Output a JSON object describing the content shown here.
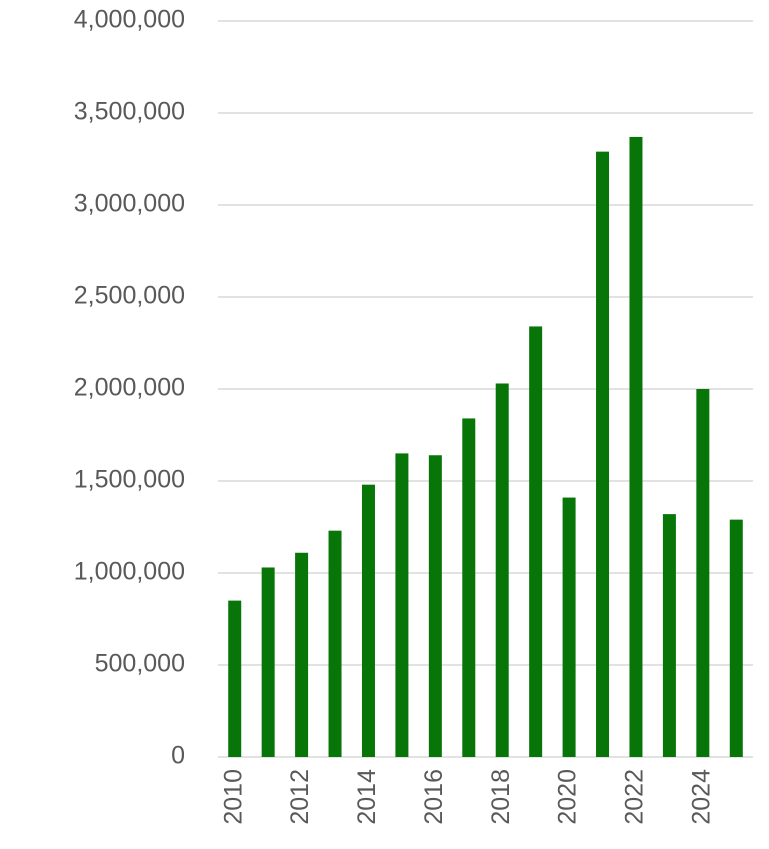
{
  "chart_data": {
    "type": "bar",
    "categories": [
      "2010",
      null,
      "2012",
      null,
      "2014",
      null,
      "2016",
      null,
      "2018",
      null,
      "2020",
      null,
      "2022",
      null,
      "2024",
      null
    ],
    "values": [
      850000,
      1030000,
      1110000,
      1230000,
      1480000,
      1650000,
      1640000,
      1840000,
      2030000,
      2340000,
      1410000,
      3290000,
      3370000,
      1320000,
      2000000,
      1290000
    ],
    "color": "#087508",
    "ylim": [
      0,
      4000000
    ],
    "yticks": [
      0,
      {
        "value": 500000,
        "label": "500,000"
      },
      {
        "value": 1000000,
        "label": "1,000,000"
      },
      {
        "value": 1500000,
        "label": "1,500,000"
      },
      {
        "value": 2000000,
        "label": "2,000,000"
      },
      {
        "value": 2500000,
        "label": "2,500,000"
      },
      {
        "value": 3000000,
        "label": "3,000,000"
      },
      {
        "value": 3500000,
        "label": "3,500,000"
      },
      {
        "value": 4000000,
        "label": "4,000,000"
      }
    ],
    "grid": true
  }
}
